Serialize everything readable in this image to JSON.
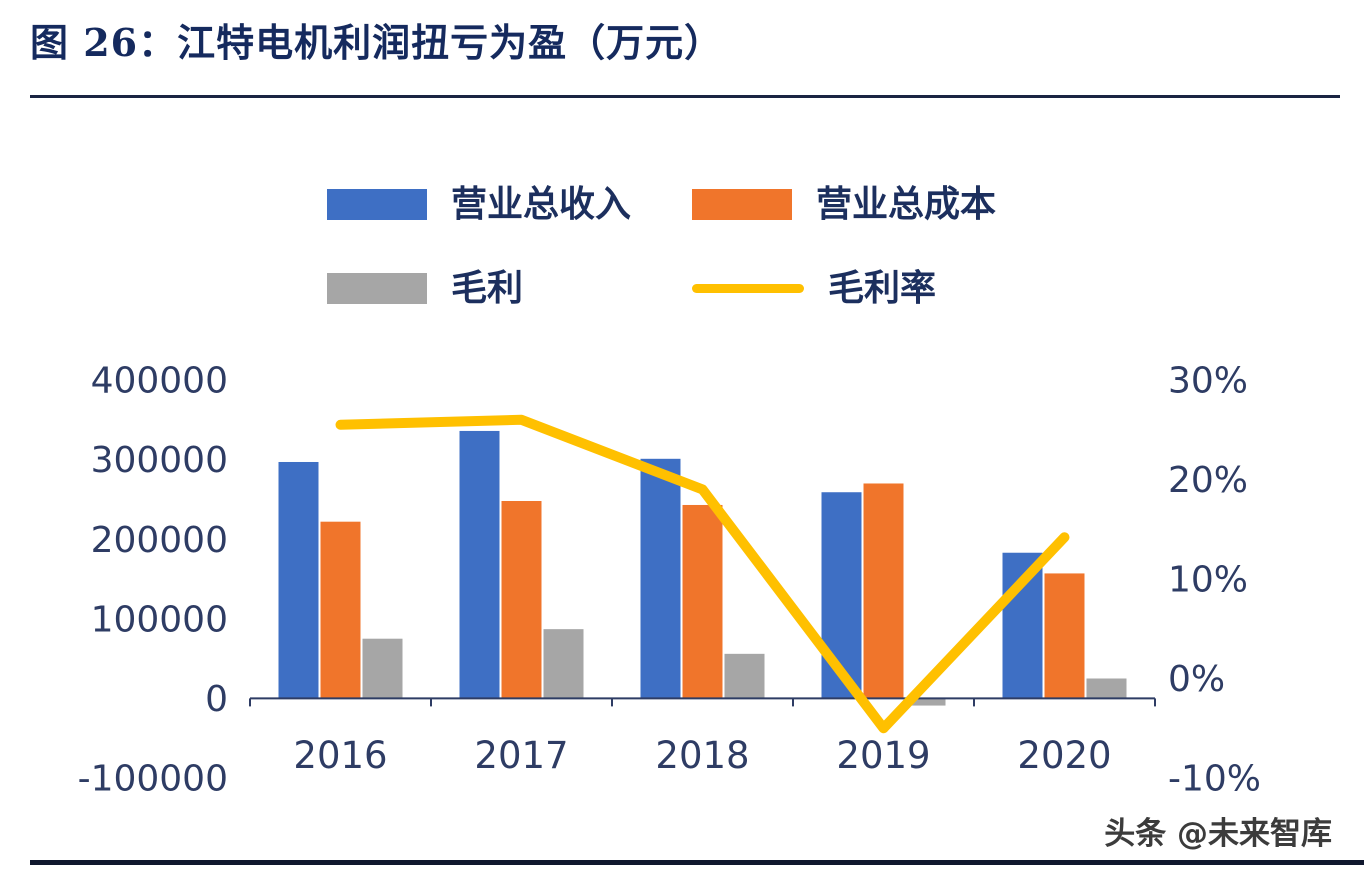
{
  "header": {
    "title": "图 26：江特电机利润扭亏为盈（万元）"
  },
  "legend": {
    "items": [
      {
        "label": "营业总收入",
        "color": "#3E6FC4",
        "type": "box"
      },
      {
        "label": "营业总成本",
        "color": "#F0752B",
        "type": "box"
      },
      {
        "label": "毛利",
        "color": "#A6A6A6",
        "type": "box"
      },
      {
        "label": "毛利率",
        "color": "#FFC000",
        "type": "line"
      }
    ]
  },
  "chart_data": {
    "type": "bar+line",
    "title": "江特电机利润扭亏为盈（万元）",
    "categories": [
      "2016",
      "2017",
      "2018",
      "2019",
      "2020"
    ],
    "bar_series": [
      {
        "name": "营业总收入",
        "color": "#3E6FC4",
        "values": [
          297000,
          336000,
          301000,
          259000,
          183000
        ]
      },
      {
        "name": "营业总成本",
        "color": "#F0752B",
        "values": [
          222000,
          248000,
          243000,
          270000,
          157000
        ]
      },
      {
        "name": "毛利",
        "color": "#A6A6A6",
        "values": [
          75000,
          87000,
          56000,
          -9000,
          25000
        ]
      }
    ],
    "line_series": {
      "name": "毛利率",
      "color": "#FFC000",
      "values": [
        25.5,
        26,
        19,
        -5,
        14.2
      ],
      "unit": "%"
    },
    "left_axis": {
      "min": -100000,
      "max": 400000,
      "step": 100000,
      "ticks": [
        "400000",
        "300000",
        "200000",
        "100000",
        "0",
        "-100000"
      ]
    },
    "right_axis": {
      "min": -10,
      "max": 30,
      "step": 10,
      "ticks": [
        "30%",
        "20%",
        "10%",
        "0%",
        "-10%"
      ]
    },
    "axis_color": "#2e3c64",
    "grid": false,
    "legend_position": "top"
  },
  "footer": {
    "watermark": "头条 @未来智库"
  }
}
